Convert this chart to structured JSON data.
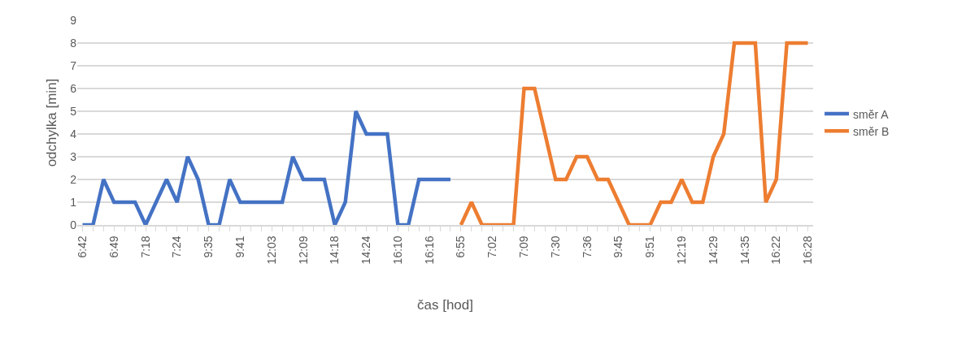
{
  "chart_data": {
    "type": "line",
    "xlabel": "čas [hod]",
    "ylabel": "odchylka [min]",
    "categories": [
      "6:42",
      null,
      null,
      "6:49",
      null,
      null,
      "7:18",
      null,
      null,
      "7:24",
      null,
      null,
      "9:35",
      null,
      null,
      "9:41",
      null,
      null,
      "12:03",
      null,
      null,
      "12:09",
      null,
      null,
      "14:18",
      null,
      null,
      "14:24",
      null,
      null,
      "16:10",
      null,
      null,
      "16:16",
      null,
      null,
      "6:55",
      null,
      null,
      "7:02",
      null,
      null,
      "7:09",
      null,
      null,
      "7:30",
      null,
      null,
      "7:36",
      null,
      null,
      "9:45",
      null,
      null,
      "9:51",
      null,
      null,
      "12:19",
      null,
      null,
      "14:29",
      null,
      null,
      "14:35",
      null,
      null,
      "16:22",
      null,
      null,
      "16:28"
    ],
    "series": [
      {
        "name": "směr A",
        "color": "#4472c4",
        "values": [
          0,
          0,
          2,
          1,
          1,
          1,
          0,
          1,
          2,
          1,
          3,
          2,
          0,
          0,
          2,
          1,
          1,
          1,
          1,
          1,
          3,
          2,
          2,
          2,
          0,
          1,
          5,
          4,
          4,
          4,
          0,
          0,
          2,
          2,
          2,
          2,
          null,
          null,
          null,
          null,
          null,
          null,
          null,
          null,
          null,
          null,
          null,
          null,
          null,
          null,
          null,
          null,
          null,
          null,
          null,
          null,
          null,
          null,
          null,
          null,
          null,
          null,
          null,
          null,
          null,
          null,
          null,
          null,
          null,
          null
        ]
      },
      {
        "name": "směr B",
        "color": "#ed7d31",
        "values": [
          null,
          null,
          null,
          null,
          null,
          null,
          null,
          null,
          null,
          null,
          null,
          null,
          null,
          null,
          null,
          null,
          null,
          null,
          null,
          null,
          null,
          null,
          null,
          null,
          null,
          null,
          null,
          null,
          null,
          null,
          null,
          null,
          null,
          null,
          null,
          null,
          0,
          1,
          0,
          0,
          0,
          0,
          6,
          6,
          4,
          2,
          2,
          3,
          3,
          2,
          2,
          1,
          0,
          0,
          0,
          1,
          1,
          2,
          1,
          1,
          3,
          4,
          8,
          8,
          8,
          1,
          2,
          8,
          8,
          8
        ]
      }
    ],
    "ylim": [
      0,
      9
    ],
    "yticks": [
      0,
      1,
      2,
      3,
      4,
      5,
      6,
      7,
      8,
      9
    ],
    "grid": "y",
    "legend": "right",
    "marker": "none",
    "line_style": "solid"
  }
}
